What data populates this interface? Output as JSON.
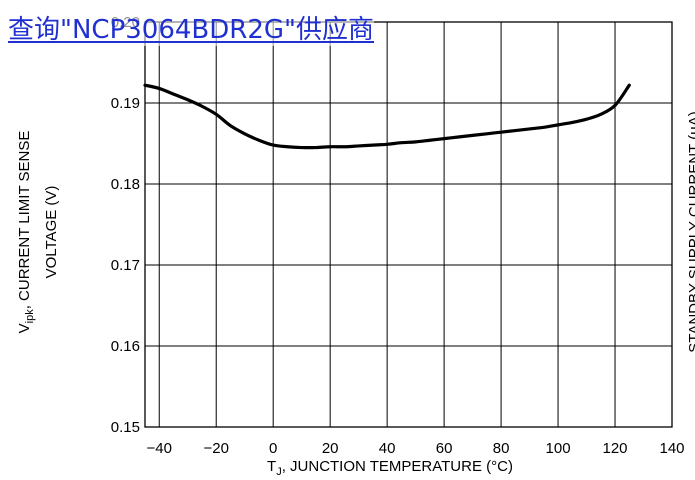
{
  "banner": {
    "text": "查询\"NCP3064BDR2G\"供应商",
    "color": "#1f2fd0"
  },
  "chart_data": {
    "type": "line",
    "xlabel_main": "T",
    "xlabel_sub": "J",
    "xlabel_rest": ", JUNCTION TEMPERATURE (°C)",
    "ylabel_main": "V",
    "ylabel_sub": "ipk",
    "ylabel_rest": ", CURRENT LIMIT SENSE",
    "ylabel_line2": "VOLTAGE (V)",
    "y2label": "STANDBY SUPPLY CURRENT (μA)",
    "xlim": [
      -45,
      140
    ],
    "ylim": [
      0.15,
      0.2
    ],
    "x_ticks": [
      -40,
      -20,
      0,
      20,
      40,
      60,
      80,
      100,
      120,
      140
    ],
    "x_tick_labels": [
      "−40",
      "−20",
      "0",
      "20",
      "40",
      "60",
      "80",
      "100",
      "120",
      "140"
    ],
    "y_ticks": [
      0.15,
      0.16,
      0.17,
      0.18,
      0.19,
      0.2
    ],
    "y_tick_labels": [
      "0.15",
      "0.16",
      "0.17",
      "0.18",
      "0.19",
      "0.20"
    ],
    "grid": true,
    "series": [
      {
        "color": "#000000",
        "x": [
          -45,
          -40,
          -35,
          -30,
          -25,
          -20,
          -15,
          -10,
          -5,
          0,
          5,
          10,
          15,
          20,
          25,
          30,
          35,
          40,
          45,
          50,
          55,
          60,
          65,
          70,
          75,
          80,
          85,
          90,
          95,
          100,
          105,
          110,
          115,
          120,
          125
        ],
        "y": [
          0.1922,
          0.1918,
          0.1911,
          0.1904,
          0.1896,
          0.1886,
          0.1872,
          0.1862,
          0.1854,
          0.1848,
          0.1846,
          0.1845,
          0.1845,
          0.1846,
          0.1846,
          0.1847,
          0.1848,
          0.1849,
          0.1851,
          0.1852,
          0.1854,
          0.1856,
          0.1858,
          0.186,
          0.1862,
          0.1864,
          0.1866,
          0.1868,
          0.187,
          0.1873,
          0.1876,
          0.188,
          0.1886,
          0.1897,
          0.1922
        ]
      }
    ]
  }
}
